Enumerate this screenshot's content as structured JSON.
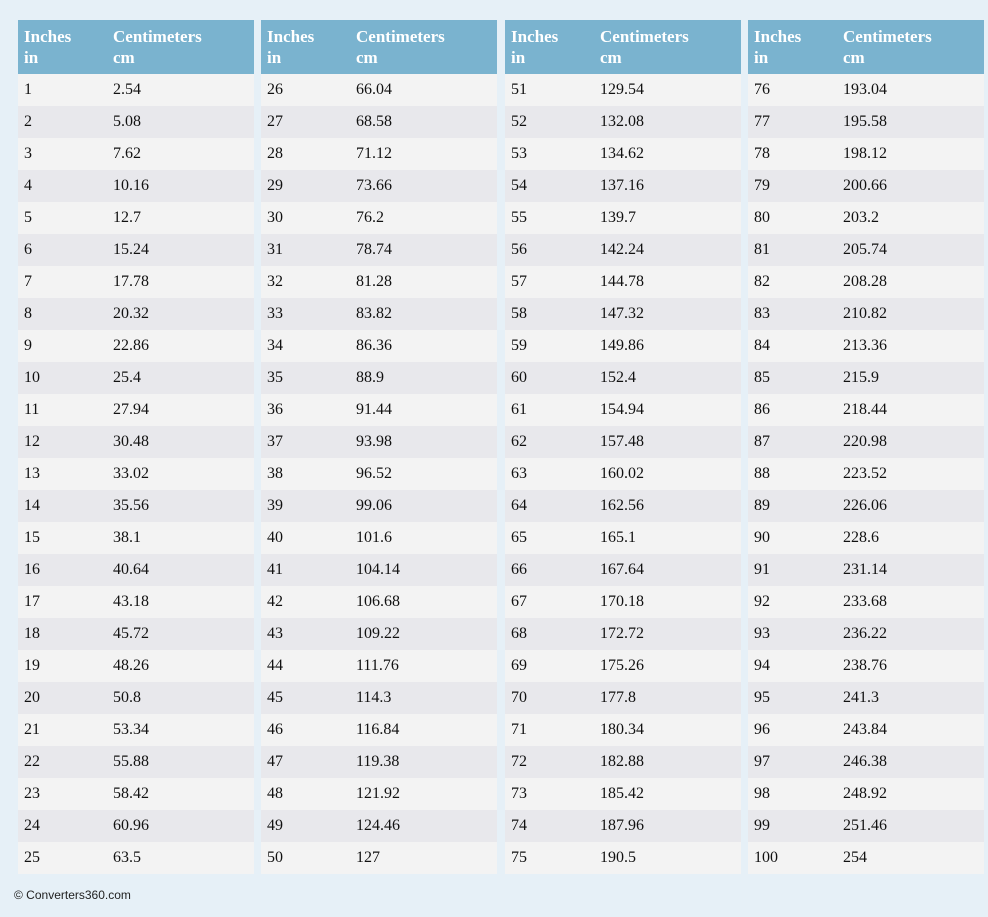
{
  "tables": [
    {
      "header": [
        [
          "Inches",
          "in"
        ],
        [
          "Centimeters",
          "cm"
        ]
      ],
      "rows": [
        [
          1,
          2.54
        ],
        [
          2,
          5.08
        ],
        [
          3,
          7.62
        ],
        [
          4,
          10.16
        ],
        [
          5,
          12.7
        ],
        [
          6,
          15.24
        ],
        [
          7,
          17.78
        ],
        [
          8,
          20.32
        ],
        [
          9,
          22.86
        ],
        [
          10,
          25.4
        ],
        [
          11,
          27.94
        ],
        [
          12,
          30.48
        ],
        [
          13,
          33.02
        ],
        [
          14,
          35.56
        ],
        [
          15,
          38.1
        ],
        [
          16,
          40.64
        ],
        [
          17,
          43.18
        ],
        [
          18,
          45.72
        ],
        [
          19,
          48.26
        ],
        [
          20,
          50.8
        ],
        [
          21,
          53.34
        ],
        [
          22,
          55.88
        ],
        [
          23,
          58.42
        ],
        [
          24,
          60.96
        ],
        [
          25,
          63.5
        ]
      ]
    },
    {
      "header": [
        [
          "Inches",
          "in"
        ],
        [
          "Centimeters",
          "cm"
        ]
      ],
      "rows": [
        [
          26,
          66.04
        ],
        [
          27,
          68.58
        ],
        [
          28,
          71.12
        ],
        [
          29,
          73.66
        ],
        [
          30,
          76.2
        ],
        [
          31,
          78.74
        ],
        [
          32,
          81.28
        ],
        [
          33,
          83.82
        ],
        [
          34,
          86.36
        ],
        [
          35,
          88.9
        ],
        [
          36,
          91.44
        ],
        [
          37,
          93.98
        ],
        [
          38,
          96.52
        ],
        [
          39,
          99.06
        ],
        [
          40,
          101.6
        ],
        [
          41,
          104.14
        ],
        [
          42,
          106.68
        ],
        [
          43,
          109.22
        ],
        [
          44,
          111.76
        ],
        [
          45,
          114.3
        ],
        [
          46,
          116.84
        ],
        [
          47,
          119.38
        ],
        [
          48,
          121.92
        ],
        [
          49,
          124.46
        ],
        [
          50,
          127
        ]
      ]
    },
    {
      "header": [
        [
          "Inches",
          "in"
        ],
        [
          "Centimeters",
          "cm"
        ]
      ],
      "rows": [
        [
          51,
          129.54
        ],
        [
          52,
          132.08
        ],
        [
          53,
          134.62
        ],
        [
          54,
          137.16
        ],
        [
          55,
          139.7
        ],
        [
          56,
          142.24
        ],
        [
          57,
          144.78
        ],
        [
          58,
          147.32
        ],
        [
          59,
          149.86
        ],
        [
          60,
          152.4
        ],
        [
          61,
          154.94
        ],
        [
          62,
          157.48
        ],
        [
          63,
          160.02
        ],
        [
          64,
          162.56
        ],
        [
          65,
          165.1
        ],
        [
          66,
          167.64
        ],
        [
          67,
          170.18
        ],
        [
          68,
          172.72
        ],
        [
          69,
          175.26
        ],
        [
          70,
          177.8
        ],
        [
          71,
          180.34
        ],
        [
          72,
          182.88
        ],
        [
          73,
          185.42
        ],
        [
          74,
          187.96
        ],
        [
          75,
          190.5
        ]
      ]
    },
    {
      "header": [
        [
          "Inches",
          "in"
        ],
        [
          "Centimeters",
          "cm"
        ]
      ],
      "rows": [
        [
          76,
          193.04
        ],
        [
          77,
          195.58
        ],
        [
          78,
          198.12
        ],
        [
          79,
          200.66
        ],
        [
          80,
          203.2
        ],
        [
          81,
          205.74
        ],
        [
          82,
          208.28
        ],
        [
          83,
          210.82
        ],
        [
          84,
          213.36
        ],
        [
          85,
          215.9
        ],
        [
          86,
          218.44
        ],
        [
          87,
          220.98
        ],
        [
          88,
          223.52
        ],
        [
          89,
          226.06
        ],
        [
          90,
          228.6
        ],
        [
          91,
          231.14
        ],
        [
          92,
          233.68
        ],
        [
          93,
          236.22
        ],
        [
          94,
          238.76
        ],
        [
          95,
          241.3
        ],
        [
          96,
          243.84
        ],
        [
          97,
          246.38
        ],
        [
          98,
          248.92
        ],
        [
          99,
          251.46
        ],
        [
          100,
          254
        ]
      ]
    }
  ],
  "footer": "© Converters360.com"
}
